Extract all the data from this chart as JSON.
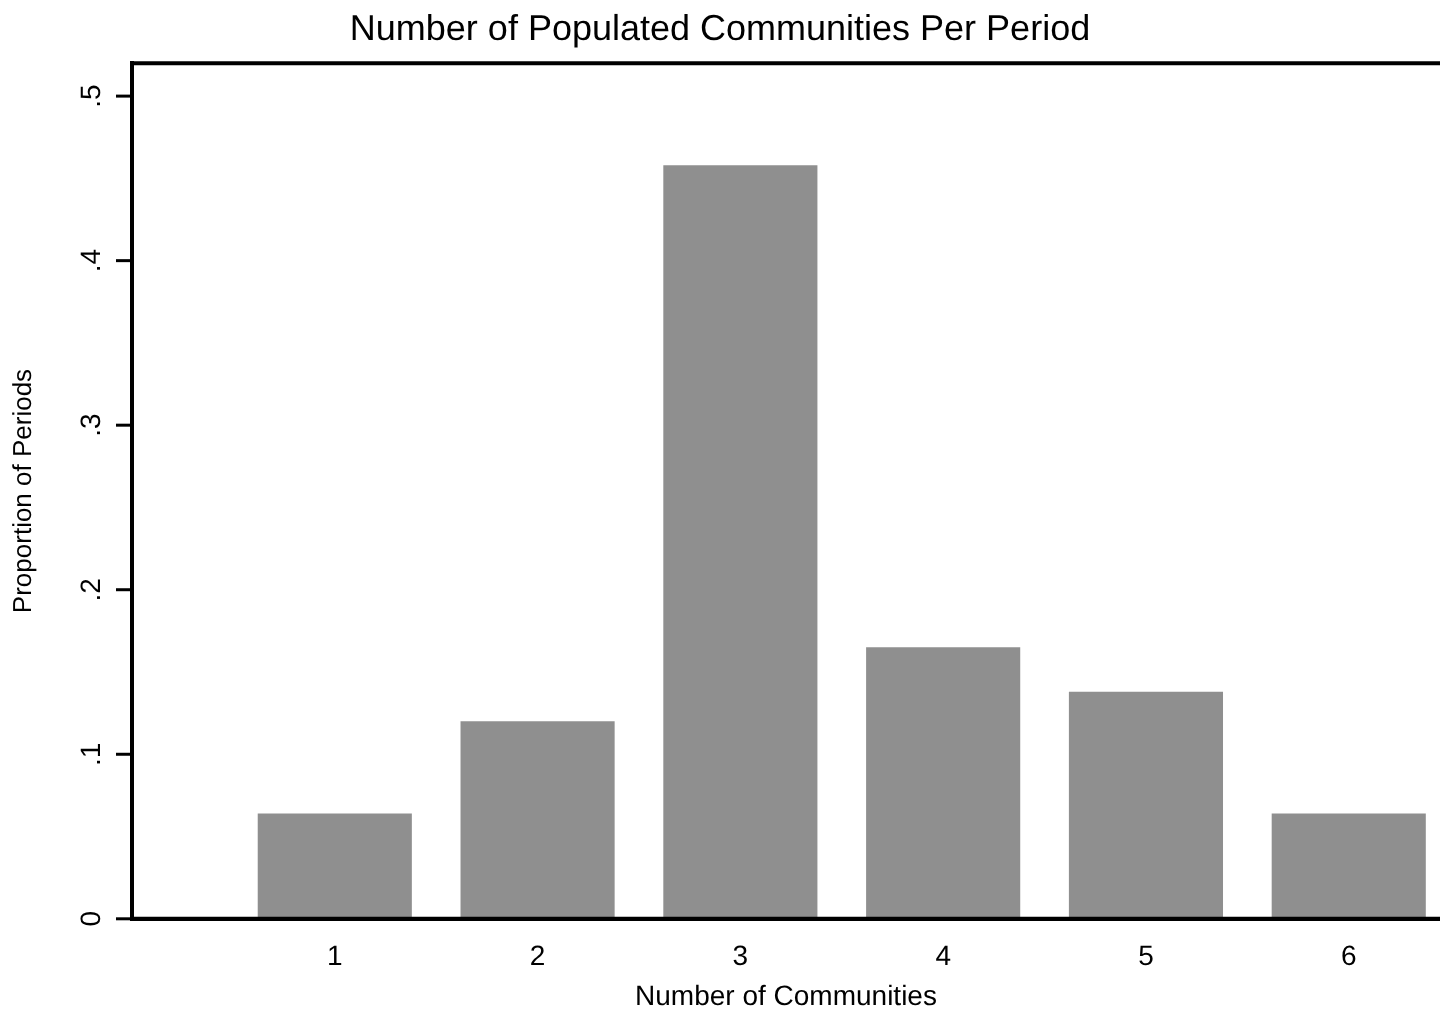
{
  "chart_data": {
    "type": "bar",
    "title": "Number of Populated Communities Per Period",
    "xlabel": "Number of Communities",
    "ylabel": "Proportion of Periods",
    "x": [
      1,
      2,
      3,
      4,
      5,
      6
    ],
    "values": [
      0.064,
      0.12,
      0.458,
      0.165,
      0.138,
      0.064
    ],
    "color": "#8f8f8f",
    "xlim": [
      0,
      6.45
    ],
    "xticks": [
      1,
      2,
      3,
      4,
      5,
      6
    ],
    "ylim": [
      0,
      0.52
    ],
    "yticks": [
      {
        "value": 0,
        "label": "0"
      },
      {
        "value": 0.1,
        "label": ".1"
      },
      {
        "value": 0.2,
        "label": ".2"
      },
      {
        "value": 0.3,
        "label": ".3"
      },
      {
        "value": 0.4,
        "label": ".4"
      },
      {
        "value": 0.5,
        "label": ".5"
      }
    ],
    "grid": false,
    "legend": false
  }
}
